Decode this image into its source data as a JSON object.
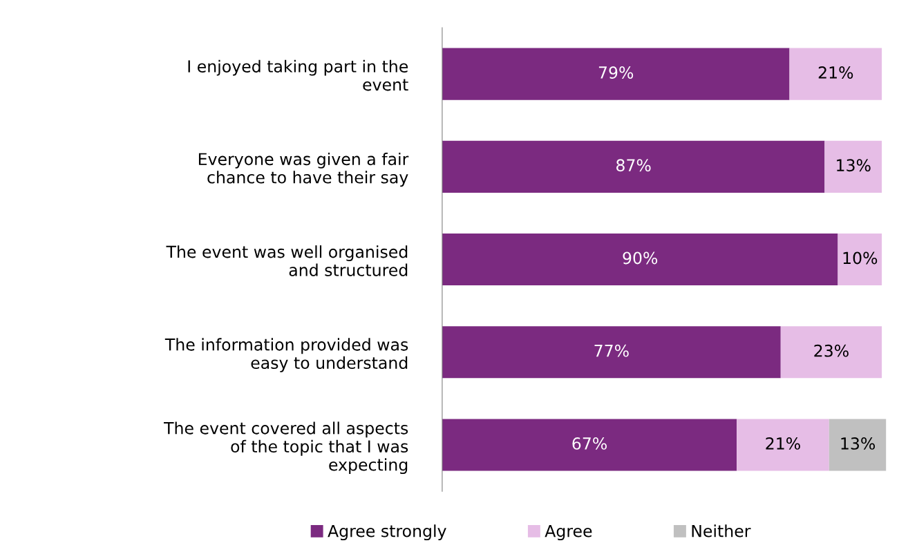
{
  "chart_data": {
    "type": "bar",
    "orientation": "horizontal",
    "stacked": true,
    "categories": [
      "I enjoyed taking part in the event",
      "Everyone was given a fair chance to have their say",
      "The event was well organised and structured",
      "The information provided was easy to understand",
      "The event covered all aspects of the topic that I was expecting"
    ],
    "series": [
      {
        "name": "Agree strongly",
        "color": "#7b2a80",
        "values": [
          79,
          87,
          90,
          77,
          67
        ],
        "value_labels": [
          "79%",
          "87%",
          "90%",
          "77%",
          "67%"
        ]
      },
      {
        "name": "Agree",
        "color": "#e6bde6",
        "values": [
          21,
          13,
          10,
          23,
          21
        ],
        "value_labels": [
          "21%",
          "13%",
          "10%",
          "23%",
          "21%"
        ]
      },
      {
        "name": "Neither",
        "color": "#c0c0c0",
        "values": [
          null,
          null,
          null,
          null,
          13
        ],
        "value_labels": [
          null,
          null,
          null,
          null,
          "13%"
        ]
      }
    ],
    "legend": "bottom",
    "grid": false
  }
}
